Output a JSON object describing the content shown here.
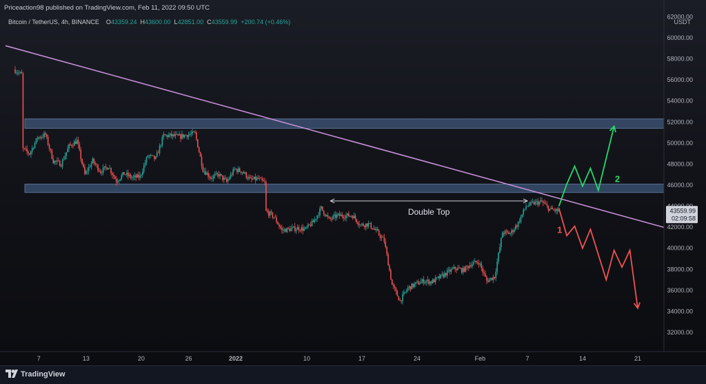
{
  "header": {
    "published_line": "Priceaction98 published on TradingView.com, Feb 11, 2022 09:50 UTC",
    "symbol_line": "Bitcoin / TetherUS, 4h, BINANCE",
    "open_label": "O",
    "open": "43359.24",
    "high_label": "H",
    "high": "43600.00",
    "low_label": "L",
    "low": "42851.00",
    "close_label": "C",
    "close": "43559.99",
    "change": "+200.74 (+0.46%)"
  },
  "price_axis": {
    "currency": "USDT",
    "ticks": [
      "62000.00",
      "60000.00",
      "58000.00",
      "56000.00",
      "54000.00",
      "52000.00",
      "50000.00",
      "48000.00",
      "46000.00",
      "44000.00",
      "42000.00",
      "40000.00",
      "38000.00",
      "36000.00",
      "34000.00",
      "32000.00"
    ],
    "last_price_label": "43559.99",
    "countdown_label": "02:09:58"
  },
  "time_axis": {
    "ticks": [
      "7",
      "13",
      "20",
      "26",
      "2022",
      "10",
      "17",
      "24",
      "Feb",
      "7",
      "14",
      "21"
    ]
  },
  "annotations": {
    "double_top": "Double Top",
    "scenario_1": "1",
    "scenario_2": "2"
  },
  "footer": {
    "brand": "TradingView"
  },
  "colors": {
    "background": "#131722",
    "up_candle": "#26a69a",
    "down_candle": "#ef5350",
    "zone_fill": "#4e6f9c",
    "trendline": "#c58fd6",
    "bullish_path": "#26d96b",
    "bearish_path": "#ef5350",
    "annotation_line": "#d1d4dc"
  },
  "chart_data": {
    "type": "candlestick",
    "symbol": "Bitcoin / TetherUS",
    "interval": "4h",
    "exchange": "BINANCE",
    "ylim": [
      31000,
      62000
    ],
    "path": [
      [
        "2021-12-04",
        58500
      ],
      [
        "2021-12-04",
        57000
      ],
      [
        "2021-12-05",
        56500
      ],
      [
        "2021-12-05",
        49500
      ],
      [
        "2021-12-06",
        49000
      ],
      [
        "2021-12-07",
        50500
      ],
      [
        "2021-12-08",
        50800
      ],
      [
        "2021-12-09",
        48300
      ],
      [
        "2021-12-10",
        48000
      ],
      [
        "2021-12-11",
        49700
      ],
      [
        "2021-12-12",
        50200
      ],
      [
        "2021-12-13",
        47000
      ],
      [
        "2021-12-14",
        48300
      ],
      [
        "2021-12-15",
        47300
      ],
      [
        "2021-12-16",
        47800
      ],
      [
        "2021-12-17",
        46400
      ],
      [
        "2021-12-18",
        47100
      ],
      [
        "2021-12-19",
        46700
      ],
      [
        "2021-12-20",
        46800
      ],
      [
        "2021-12-21",
        48800
      ],
      [
        "2021-12-22",
        48500
      ],
      [
        "2021-12-23",
        50700
      ],
      [
        "2021-12-24",
        50700
      ],
      [
        "2021-12-25",
        50600
      ],
      [
        "2021-12-26",
        50800
      ],
      [
        "2021-12-27",
        50900
      ],
      [
        "2021-12-28",
        47500
      ],
      [
        "2021-12-29",
        46700
      ],
      [
        "2021-12-30",
        47000
      ],
      [
        "2021-12-31",
        46300
      ],
      [
        "2022-01-01",
        47500
      ],
      [
        "2022-01-02",
        47300
      ],
      [
        "2022-01-03",
        46500
      ],
      [
        "2022-01-04",
        46600
      ],
      [
        "2022-01-05",
        46100
      ],
      [
        "2022-01-05",
        43500
      ],
      [
        "2022-01-06",
        43000
      ],
      [
        "2022-01-07",
        41700
      ],
      [
        "2022-01-08",
        41800
      ],
      [
        "2022-01-09",
        41900
      ],
      [
        "2022-01-10",
        41800
      ],
      [
        "2022-01-11",
        42500
      ],
      [
        "2022-01-12",
        43800
      ],
      [
        "2022-01-13",
        42700
      ],
      [
        "2022-01-14",
        43100
      ],
      [
        "2022-01-15",
        43100
      ],
      [
        "2022-01-16",
        43100
      ],
      [
        "2022-01-17",
        42200
      ],
      [
        "2022-01-18",
        42300
      ],
      [
        "2022-01-19",
        41600
      ],
      [
        "2022-01-20",
        40700
      ],
      [
        "2022-01-21",
        36500
      ],
      [
        "2022-01-22",
        35000
      ],
      [
        "2022-01-23",
        36200
      ],
      [
        "2022-01-24",
        36600
      ],
      [
        "2022-01-25",
        36900
      ],
      [
        "2022-01-26",
        36800
      ],
      [
        "2022-01-27",
        37200
      ],
      [
        "2022-01-28",
        37700
      ],
      [
        "2022-01-29",
        38100
      ],
      [
        "2022-01-30",
        37900
      ],
      [
        "2022-01-31",
        38500
      ],
      [
        "2022-02-01",
        38700
      ],
      [
        "2022-02-02",
        36900
      ],
      [
        "2022-02-03",
        37300
      ],
      [
        "2022-02-04",
        41500
      ],
      [
        "2022-02-05",
        41400
      ],
      [
        "2022-02-06",
        42400
      ],
      [
        "2022-02-07",
        44000
      ],
      [
        "2022-02-08",
        44300
      ],
      [
        "2022-02-09",
        44400
      ],
      [
        "2022-02-10",
        43700
      ],
      [
        "2022-02-11",
        43560
      ]
    ],
    "levels": {
      "resistance_zone": [
        51400,
        52300
      ],
      "support_resistance_zone": [
        45300,
        46100
      ]
    },
    "trendline": [
      [
        "2021-12-04",
        59000
      ],
      [
        "2022-02-17",
        43500
      ]
    ],
    "double_top_line": [
      [
        "2022-01-13",
        44500
      ],
      [
        "2022-02-07",
        44500
      ]
    ],
    "scenario_2_path": [
      [
        "2022-02-11",
        44000
      ],
      [
        "2022-02-12",
        46100
      ],
      [
        "2022-02-13",
        47800
      ],
      [
        "2022-02-14",
        45900
      ],
      [
        "2022-02-15",
        47600
      ],
      [
        "2022-02-16",
        45500
      ],
      [
        "2022-02-18",
        51600
      ]
    ],
    "scenario_1_path": [
      [
        "2022-02-11",
        43800
      ],
      [
        "2022-02-12",
        41200
      ],
      [
        "2022-02-13",
        42100
      ],
      [
        "2022-02-14",
        40000
      ],
      [
        "2022-02-15",
        41800
      ],
      [
        "2022-02-17",
        37000
      ],
      [
        "2022-02-18",
        39800
      ],
      [
        "2022-02-19",
        38200
      ],
      [
        "2022-02-20",
        39800
      ],
      [
        "2022-02-21",
        34300
      ]
    ]
  }
}
